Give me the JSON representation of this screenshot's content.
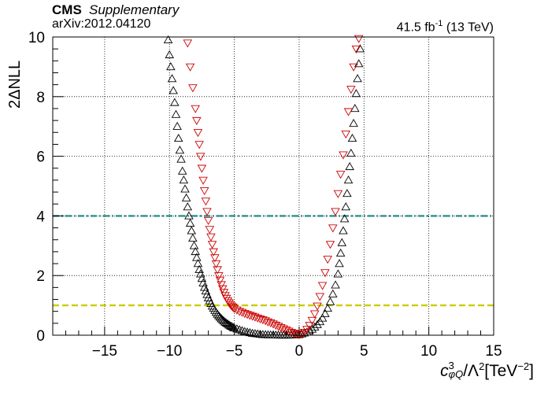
{
  "header": {
    "experiment": "CMS",
    "label": "Supplementary",
    "arxiv": "arXiv:2012.04120",
    "lumi_value": "41.5 fb",
    "lumi_exp": "-1",
    "energy": "(13 TeV)"
  },
  "axes": {
    "ylabel": "2ΔNLL",
    "xlabel_var": "c",
    "xlabel_sub": "φQ",
    "xlabel_sup": "3",
    "xlabel_rest": "/Λ",
    "xlabel_sup2": "2",
    "xlabel_unit": "[TeV",
    "xlabel_unit_exp": "−2",
    "xlabel_close": "]"
  },
  "chart_data": {
    "type": "scatter",
    "xlim": [
      -19,
      15
    ],
    "ylim": [
      0,
      10
    ],
    "xticks": [
      -15,
      -10,
      -5,
      0,
      5,
      10,
      15
    ],
    "xtick_labels": [
      "−15",
      "−10",
      "−5",
      "0",
      "5",
      "10",
      "15"
    ],
    "yticks": [
      0,
      2,
      4,
      6,
      8,
      10
    ],
    "ytick_labels": [
      "0",
      "2",
      "4",
      "6",
      "8",
      "10"
    ],
    "grid": true,
    "reference_lines": [
      {
        "y": 4,
        "color": "#2f8f8f",
        "style": "dash-dot"
      },
      {
        "y": 1,
        "color": "#cccc00",
        "style": "dashed"
      }
    ],
    "series": [
      {
        "marker": "triangle-up",
        "color": "#000000",
        "points": [
          [
            -10.1,
            9.9
          ],
          [
            -10.0,
            9.4
          ],
          [
            -9.9,
            9.0
          ],
          [
            -9.8,
            8.6
          ],
          [
            -9.7,
            8.2
          ],
          [
            -9.6,
            7.8
          ],
          [
            -9.5,
            7.4
          ],
          [
            -9.4,
            7.0
          ],
          [
            -9.3,
            6.6
          ],
          [
            -9.2,
            6.2
          ],
          [
            -9.1,
            5.9
          ],
          [
            -9.0,
            5.5
          ],
          [
            -8.9,
            5.2
          ],
          [
            -8.8,
            4.9
          ],
          [
            -8.7,
            4.6
          ],
          [
            -8.6,
            4.3
          ],
          [
            -8.5,
            4.0
          ],
          [
            -8.4,
            3.75
          ],
          [
            -8.3,
            3.5
          ],
          [
            -8.2,
            3.25
          ],
          [
            -8.1,
            3.0
          ],
          [
            -8.0,
            2.8
          ],
          [
            -7.9,
            2.6
          ],
          [
            -7.8,
            2.4
          ],
          [
            -7.7,
            2.2
          ],
          [
            -7.6,
            2.05
          ],
          [
            -7.5,
            1.9
          ],
          [
            -7.4,
            1.75
          ],
          [
            -7.3,
            1.6
          ],
          [
            -7.2,
            1.48
          ],
          [
            -7.1,
            1.36
          ],
          [
            -7.0,
            1.25
          ],
          [
            -6.9,
            1.15
          ],
          [
            -6.8,
            1.06
          ],
          [
            -6.7,
            0.97
          ],
          [
            -6.6,
            0.9
          ],
          [
            -6.5,
            0.83
          ],
          [
            -6.4,
            0.76
          ],
          [
            -6.3,
            0.7
          ],
          [
            -6.2,
            0.65
          ],
          [
            -6.1,
            0.6
          ],
          [
            -6.0,
            0.55
          ],
          [
            -5.9,
            0.51
          ],
          [
            -5.8,
            0.47
          ],
          [
            -5.7,
            0.43
          ],
          [
            -5.6,
            0.4
          ],
          [
            -5.5,
            0.37
          ],
          [
            -5.4,
            0.34
          ],
          [
            -5.3,
            0.31
          ],
          [
            -5.2,
            0.29
          ],
          [
            -5.1,
            0.26
          ],
          [
            -5.0,
            0.24
          ],
          [
            -4.8,
            0.21
          ],
          [
            -4.6,
            0.18
          ],
          [
            -4.4,
            0.15
          ],
          [
            -4.2,
            0.12
          ],
          [
            -4.0,
            0.1
          ],
          [
            -3.8,
            0.08
          ],
          [
            -3.6,
            0.06
          ],
          [
            -3.4,
            0.05
          ],
          [
            -3.2,
            0.04
          ],
          [
            -3.0,
            0.03
          ],
          [
            -2.8,
            0.02
          ],
          [
            -2.6,
            0.015
          ],
          [
            -2.4,
            0.01
          ],
          [
            -2.2,
            0.008
          ],
          [
            -2.0,
            0.005
          ],
          [
            -1.8,
            0.004
          ],
          [
            -1.6,
            0.003
          ],
          [
            -1.4,
            0.002
          ],
          [
            -1.2,
            0.002
          ],
          [
            -1.0,
            0.002
          ],
          [
            -0.8,
            0.003
          ],
          [
            -0.6,
            0.005
          ],
          [
            -0.4,
            0.008
          ],
          [
            -0.2,
            0.012
          ],
          [
            0.0,
            0.02
          ],
          [
            0.2,
            0.04
          ],
          [
            0.4,
            0.07
          ],
          [
            0.6,
            0.1
          ],
          [
            0.8,
            0.15
          ],
          [
            1.0,
            0.2
          ],
          [
            1.2,
            0.27
          ],
          [
            1.4,
            0.35
          ],
          [
            1.6,
            0.45
          ],
          [
            1.8,
            0.57
          ],
          [
            2.0,
            0.72
          ],
          [
            2.2,
            0.9
          ],
          [
            2.4,
            1.12
          ],
          [
            2.6,
            1.38
          ],
          [
            2.8,
            1.68
          ],
          [
            3.0,
            2.05
          ],
          [
            3.1,
            2.4
          ],
          [
            3.2,
            2.75
          ],
          [
            3.3,
            3.1
          ],
          [
            3.4,
            3.5
          ],
          [
            3.5,
            3.9
          ],
          [
            3.6,
            4.3
          ],
          [
            3.7,
            4.75
          ],
          [
            3.8,
            5.2
          ],
          [
            3.9,
            5.65
          ],
          [
            4.0,
            6.1
          ],
          [
            4.1,
            6.6
          ],
          [
            4.2,
            7.1
          ],
          [
            4.3,
            7.6
          ],
          [
            4.4,
            8.1
          ],
          [
            4.5,
            8.6
          ],
          [
            4.6,
            9.1
          ],
          [
            4.7,
            9.6
          ]
        ]
      },
      {
        "marker": "triangle-down",
        "color": "#cc0000",
        "points": [
          [
            -8.6,
            9.8
          ],
          [
            -8.4,
            9.0
          ],
          [
            -8.2,
            8.3
          ],
          [
            -8.0,
            7.6
          ],
          [
            -7.9,
            7.2
          ],
          [
            -7.8,
            6.8
          ],
          [
            -7.7,
            6.4
          ],
          [
            -7.6,
            6.0
          ],
          [
            -7.5,
            5.6
          ],
          [
            -7.4,
            5.2
          ],
          [
            -7.3,
            4.85
          ],
          [
            -7.2,
            4.5
          ],
          [
            -7.1,
            4.15
          ],
          [
            -7.0,
            3.85
          ],
          [
            -6.9,
            3.55
          ],
          [
            -6.8,
            3.3
          ],
          [
            -6.7,
            3.05
          ],
          [
            -6.6,
            2.8
          ],
          [
            -6.5,
            2.6
          ],
          [
            -6.4,
            2.4
          ],
          [
            -6.3,
            2.2
          ],
          [
            -6.2,
            2.0
          ],
          [
            -6.1,
            1.85
          ],
          [
            -6.0,
            1.7
          ],
          [
            -5.9,
            1.56
          ],
          [
            -5.8,
            1.44
          ],
          [
            -5.7,
            1.33
          ],
          [
            -5.6,
            1.24
          ],
          [
            -5.5,
            1.16
          ],
          [
            -5.4,
            1.09
          ],
          [
            -5.3,
            1.03
          ],
          [
            -5.2,
            0.98
          ],
          [
            -5.1,
            0.94
          ],
          [
            -5.0,
            0.9
          ],
          [
            -4.8,
            0.85
          ],
          [
            -4.6,
            0.8
          ],
          [
            -4.4,
            0.77
          ],
          [
            -4.2,
            0.73
          ],
          [
            -4.0,
            0.7
          ],
          [
            -3.8,
            0.67
          ],
          [
            -3.6,
            0.64
          ],
          [
            -3.4,
            0.61
          ],
          [
            -3.2,
            0.58
          ],
          [
            -3.0,
            0.55
          ],
          [
            -2.8,
            0.52
          ],
          [
            -2.6,
            0.49
          ],
          [
            -2.4,
            0.45
          ],
          [
            -2.2,
            0.42
          ],
          [
            -2.0,
            0.38
          ],
          [
            -1.8,
            0.34
          ],
          [
            -1.6,
            0.3
          ],
          [
            -1.4,
            0.26
          ],
          [
            -1.2,
            0.22
          ],
          [
            -1.0,
            0.18
          ],
          [
            -0.8,
            0.14
          ],
          [
            -0.6,
            0.1
          ],
          [
            -0.4,
            0.07
          ],
          [
            -0.2,
            0.04
          ],
          [
            0.0,
            0.02
          ],
          [
            0.2,
            0.04
          ],
          [
            0.4,
            0.1
          ],
          [
            0.6,
            0.2
          ],
          [
            0.8,
            0.33
          ],
          [
            1.0,
            0.5
          ],
          [
            1.2,
            0.72
          ],
          [
            1.4,
            0.98
          ],
          [
            1.6,
            1.3
          ],
          [
            1.8,
            1.67
          ],
          [
            2.0,
            2.1
          ],
          [
            2.2,
            2.55
          ],
          [
            2.4,
            3.05
          ],
          [
            2.6,
            3.6
          ],
          [
            2.8,
            4.15
          ],
          [
            3.0,
            4.75
          ],
          [
            3.2,
            5.4
          ],
          [
            3.4,
            6.05
          ],
          [
            3.6,
            6.75
          ],
          [
            3.8,
            7.5
          ],
          [
            4.0,
            8.25
          ],
          [
            4.2,
            9.0
          ],
          [
            4.4,
            9.6
          ],
          [
            4.6,
            9.95
          ]
        ]
      }
    ]
  }
}
